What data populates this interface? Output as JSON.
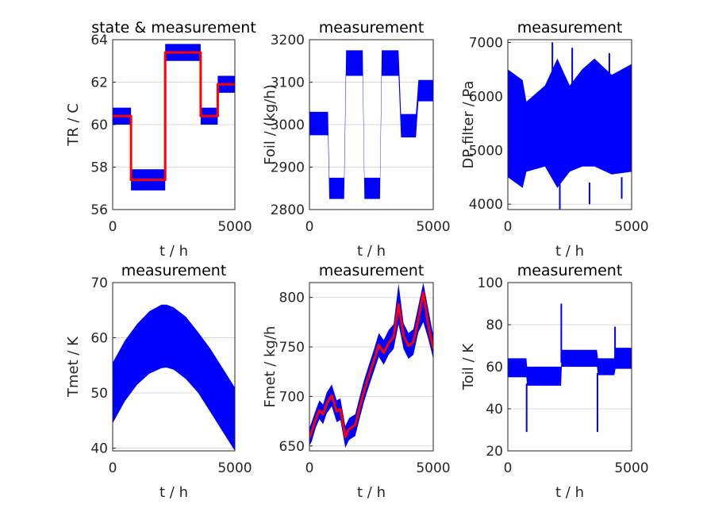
{
  "chart_data": [
    {
      "type": "area",
      "title": "state & measurement",
      "xlabel": "t / h",
      "ylabel": "TR / C",
      "xlim": [
        0,
        5000
      ],
      "ylim": [
        56,
        64
      ],
      "xticks": [
        "0",
        "5000"
      ],
      "yticks": [
        "56",
        "58",
        "60",
        "62",
        "64"
      ],
      "grid": "horizontal",
      "series": [
        {
          "name": "",
          "color": "#0000ff",
          "kind": "band",
          "x": [
            0,
            750,
            750,
            2150,
            2150,
            3600,
            3600,
            4300,
            4300,
            5000
          ],
          "lower": [
            60.0,
            60.0,
            56.9,
            56.9,
            63.0,
            63.0,
            60.0,
            60.0,
            61.5,
            61.5
          ],
          "upper": [
            60.8,
            60.8,
            57.9,
            57.9,
            63.8,
            63.8,
            60.8,
            60.8,
            62.3,
            62.3
          ]
        },
        {
          "name": "",
          "color": "#ff0000",
          "kind": "line",
          "x": [
            0,
            750,
            750,
            2150,
            2150,
            3600,
            3600,
            4300,
            4300,
            5000
          ],
          "y": [
            60.4,
            60.4,
            57.4,
            57.4,
            63.4,
            63.4,
            60.4,
            60.4,
            61.9,
            61.9
          ]
        }
      ]
    },
    {
      "type": "area",
      "title": "measurement",
      "xlabel": "t / h",
      "ylabel": "Foil / (kg/h)",
      "xlim": [
        0,
        5000
      ],
      "ylim": [
        2800,
        3200
      ],
      "xticks": [
        "0",
        "5000"
      ],
      "yticks": [
        "2800",
        "2900",
        "3000",
        "3100",
        "3200"
      ],
      "grid": "horizontal",
      "series": [
        {
          "name": "",
          "color": "#0000ff",
          "kind": "band",
          "x": [
            0,
            750,
            800,
            1400,
            1480,
            2150,
            2220,
            2850,
            2920,
            3600,
            3700,
            4300,
            4400,
            5000
          ],
          "lower": [
            2975,
            2975,
            2825,
            2825,
            3115,
            3115,
            2825,
            2825,
            3115,
            3115,
            2970,
            2970,
            3055,
            3055
          ],
          "upper": [
            3030,
            3030,
            2875,
            2875,
            3175,
            3175,
            2875,
            2875,
            3175,
            3175,
            3025,
            3025,
            3105,
            3105
          ]
        }
      ]
    },
    {
      "type": "area",
      "title": "measurement",
      "xlabel": "t / h",
      "ylabel": "DP filter / Pa",
      "xlim": [
        0,
        5000
      ],
      "ylim": [
        3900,
        7050
      ],
      "xticks": [
        "0",
        "5000"
      ],
      "yticks": [
        "4000",
        "5000",
        "6000",
        "7000"
      ],
      "grid": "horizontal",
      "series": [
        {
          "name": "",
          "color": "#0000ff",
          "kind": "band",
          "x": [
            0,
            600,
            750,
            1500,
            2000,
            2500,
            3000,
            3500,
            4200,
            5000
          ],
          "lower": [
            4500,
            4300,
            4600,
            4700,
            4300,
            4600,
            4700,
            4700,
            4550,
            4600
          ],
          "upper": [
            6500,
            6300,
            5900,
            6200,
            6700,
            6200,
            6500,
            6700,
            6400,
            6600
          ]
        },
        {
          "name": "",
          "color": "#0000ff",
          "kind": "spikes",
          "x": [
            1800,
            2100,
            2600,
            3300,
            4100,
            4600
          ],
          "y0": [
            6200,
            4500,
            6200,
            4400,
            6300,
            4500
          ],
          "y1": [
            7000,
            3900,
            6900,
            4000,
            6800,
            4100
          ]
        }
      ]
    },
    {
      "type": "area",
      "title": "measurement",
      "xlabel": "t / h",
      "ylabel": "Tmet / K",
      "xlim": [
        0,
        5000
      ],
      "ylim": [
        39.5,
        70
      ],
      "xticks": [
        "0",
        "5000"
      ],
      "yticks": [
        "40",
        "50",
        "60",
        "70"
      ],
      "grid": "horizontal",
      "series": [
        {
          "name": "",
          "color": "#0000ff",
          "kind": "band",
          "x": [
            0,
            500,
            1000,
            1500,
            2000,
            2200,
            2500,
            3000,
            3500,
            4000,
            4500,
            5000
          ],
          "lower": [
            44.5,
            48.5,
            51.5,
            53.5,
            54.5,
            54.6,
            54.2,
            52.5,
            50.0,
            46.5,
            43.0,
            39.5
          ],
          "upper": [
            55.5,
            59.5,
            62.5,
            64.8,
            66.0,
            66.0,
            65.5,
            63.8,
            61.0,
            58.0,
            54.5,
            51.0
          ]
        }
      ]
    },
    {
      "type": "line",
      "title": "measurement",
      "xlabel": "t / h",
      "ylabel": "Fmet / kg/h",
      "xlim": [
        0,
        5000
      ],
      "ylim": [
        645,
        815
      ],
      "xticks": [
        "0",
        "5000"
      ],
      "yticks": [
        "650",
        "700",
        "750",
        "800"
      ],
      "grid": "horizontal",
      "series": [
        {
          "name": "",
          "color": "#0000ff",
          "kind": "band",
          "x": [
            0,
            100,
            250,
            400,
            550,
            700,
            900,
            1100,
            1250,
            1450,
            1600,
            1850,
            2000,
            2200,
            2400,
            2600,
            2800,
            3000,
            3200,
            3400,
            3600,
            3800,
            4000,
            4200,
            4400,
            4600,
            4800,
            5000
          ],
          "lower": [
            650,
            655,
            668,
            677,
            672,
            683,
            690,
            674,
            676,
            648,
            656,
            660,
            675,
            694,
            710,
            725,
            740,
            732,
            742,
            748,
            773,
            748,
            738,
            742,
            765,
            775,
            758,
            738
          ],
          "upper": [
            668,
            675,
            686,
            696,
            692,
            704,
            712,
            696,
            698,
            670,
            678,
            682,
            697,
            716,
            732,
            747,
            764,
            757,
            767,
            773,
            814,
            774,
            764,
            768,
            792,
            815,
            788,
            762
          ]
        },
        {
          "name": "",
          "color": "#ff0000",
          "kind": "line",
          "x": [
            0,
            100,
            250,
            400,
            550,
            700,
            900,
            1100,
            1250,
            1450,
            1600,
            1850,
            2000,
            2200,
            2400,
            2600,
            2800,
            3000,
            3200,
            3400,
            3600,
            3800,
            4000,
            4200,
            4400,
            4600,
            4800,
            5000
          ],
          "y": [
            658,
            665,
            677,
            686,
            682,
            693,
            701,
            685,
            687,
            659,
            667,
            671,
            686,
            705,
            721,
            736,
            752,
            744,
            754,
            760,
            793,
            761,
            751,
            755,
            778,
            805,
            772,
            748
          ]
        }
      ]
    },
    {
      "type": "area",
      "title": "measurement",
      "xlabel": "t / h",
      "ylabel": "Toil / K",
      "xlim": [
        0,
        5000
      ],
      "ylim": [
        20,
        100
      ],
      "xticks": [
        "0",
        "5000"
      ],
      "yticks": [
        "20",
        "40",
        "60",
        "80",
        "100"
      ],
      "grid": "horizontal",
      "series": [
        {
          "name": "",
          "color": "#0000ff",
          "kind": "band",
          "x": [
            0,
            750,
            780,
            2150,
            2180,
            3600,
            3640,
            4300,
            4350,
            5000
          ],
          "lower": [
            55,
            55,
            51,
            51,
            60,
            60,
            56,
            56,
            59,
            59
          ],
          "upper": [
            64,
            64,
            60,
            60,
            68,
            68,
            64,
            64,
            69,
            69
          ]
        },
        {
          "name": "",
          "color": "#0000ff",
          "kind": "spikes",
          "x": [
            760,
            2160,
            3620,
            4330
          ],
          "y0": [
            52,
            62,
            57,
            62
          ],
          "y1": [
            29,
            90,
            29,
            79
          ]
        }
      ]
    }
  ]
}
